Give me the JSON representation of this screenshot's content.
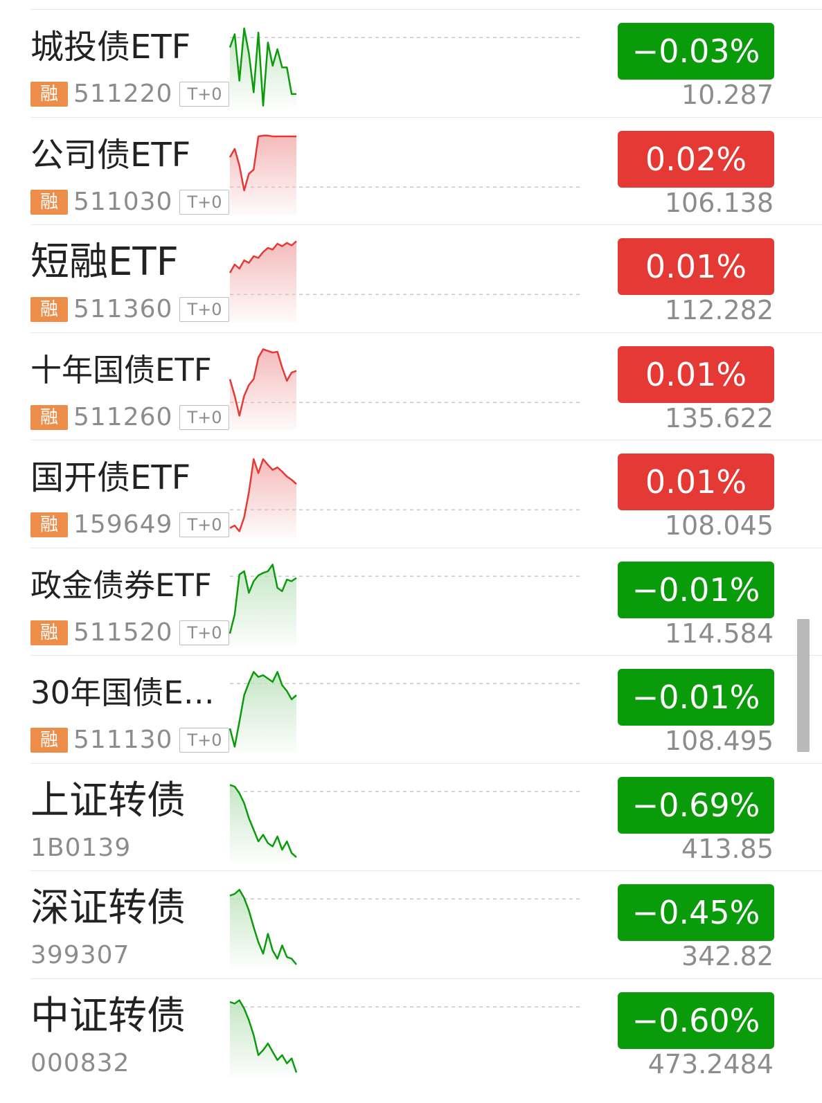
{
  "colors": {
    "up": "#e53935",
    "down": "#0a9b0a",
    "up_fill": "#f3b3b3",
    "down_fill": "#bfe3bf",
    "badge_rong": "#ec8d4a",
    "muted": "#8c8c8c",
    "divider": "#e7e7e7"
  },
  "rows": [
    {
      "name": "城投债ETF",
      "rong": "融",
      "code": "511220",
      "t0": "T+0",
      "change": "−0.03%",
      "price": "10.287",
      "direction": "down",
      "name_size": "lg",
      "spark": [
        0.28,
        0.12,
        0.68,
        0.05,
        0.35,
        0.82,
        0.1,
        0.98,
        0.22,
        0.5,
        0.3,
        0.52,
        0.52,
        0.84,
        0.84
      ]
    },
    {
      "name": "公司债ETF",
      "rong": "融",
      "code": "511030",
      "t0": "T+0",
      "change": "0.02%",
      "price": "106.138",
      "direction": "up",
      "name_size": "lg",
      "spark": [
        0.3,
        0.2,
        0.4,
        0.7,
        0.5,
        0.45,
        0.05,
        0.04,
        0.04,
        0.05,
        0.05,
        0.05,
        0.05,
        0.05,
        0.05
      ]
    },
    {
      "name": "短融ETF",
      "rong": "融",
      "code": "511360",
      "t0": "T+0",
      "change": "0.01%",
      "price": "112.282",
      "direction": "up",
      "name_size": "xl",
      "spark": [
        0.4,
        0.3,
        0.35,
        0.25,
        0.28,
        0.2,
        0.22,
        0.15,
        0.1,
        0.12,
        0.05,
        0.08,
        0.04,
        0.07,
        0.02
      ]
    },
    {
      "name": "十年国债ETF",
      "rong": "融",
      "code": "511260",
      "t0": "T+0",
      "change": "0.01%",
      "price": "135.622",
      "direction": "up",
      "name_size": "md",
      "spark": [
        0.38,
        0.58,
        0.82,
        0.58,
        0.45,
        0.38,
        0.12,
        0.02,
        0.04,
        0.06,
        0.05,
        0.24,
        0.4,
        0.3,
        0.28
      ]
    },
    {
      "name": "国开债ETF",
      "rong": "融",
      "code": "159649",
      "t0": "T+0",
      "change": "0.01%",
      "price": "108.045",
      "direction": "up",
      "name_size": "lg",
      "spark": [
        0.88,
        0.85,
        0.92,
        0.75,
        0.45,
        0.05,
        0.22,
        0.05,
        0.12,
        0.18,
        0.15,
        0.2,
        0.26,
        0.3,
        0.35
      ]
    },
    {
      "name": "政金债券ETF",
      "rong": "融",
      "code": "511520",
      "t0": "T+0",
      "change": "−0.01%",
      "price": "114.584",
      "direction": "down",
      "name_size": "md",
      "spark": [
        0.85,
        0.62,
        0.14,
        0.1,
        0.36,
        0.22,
        0.15,
        0.12,
        0.1,
        0.02,
        0.3,
        0.34,
        0.2,
        0.22,
        0.18
      ]
    },
    {
      "name": "30年国债ETF...",
      "rong": "融",
      "code": "511130",
      "t0": "T+0",
      "change": "−0.01%",
      "price": "108.495",
      "direction": "down",
      "name_size": "md",
      "spark": [
        0.7,
        0.92,
        0.62,
        0.3,
        0.15,
        0.02,
        0.08,
        0.06,
        0.1,
        0.14,
        0.02,
        0.18,
        0.25,
        0.35,
        0.3
      ]
    },
    {
      "name": "上证转债",
      "rong": "",
      "code": "1B0139",
      "t0": "",
      "change": "−0.69%",
      "price": "413.85",
      "direction": "down",
      "name_size": "xl",
      "spark": [
        0.08,
        0.1,
        0.18,
        0.3,
        0.48,
        0.62,
        0.76,
        0.68,
        0.78,
        0.82,
        0.7,
        0.86,
        0.76,
        0.9,
        0.95
      ]
    },
    {
      "name": "深证转债",
      "rong": "",
      "code": "399307",
      "t0": "",
      "change": "−0.45%",
      "price": "342.82",
      "direction": "down",
      "name_size": "xl",
      "spark": [
        0.12,
        0.1,
        0.05,
        0.15,
        0.3,
        0.5,
        0.68,
        0.82,
        0.58,
        0.78,
        0.88,
        0.72,
        0.86,
        0.88,
        0.95
      ]
    },
    {
      "name": "中证转债",
      "rong": "",
      "code": "000832",
      "t0": "",
      "change": "−0.60%",
      "price": "473.2484",
      "direction": "down",
      "name_size": "xl",
      "spark": [
        0.1,
        0.12,
        0.08,
        0.18,
        0.32,
        0.5,
        0.74,
        0.68,
        0.6,
        0.7,
        0.8,
        0.74,
        0.84,
        0.78,
        0.95
      ]
    }
  ]
}
